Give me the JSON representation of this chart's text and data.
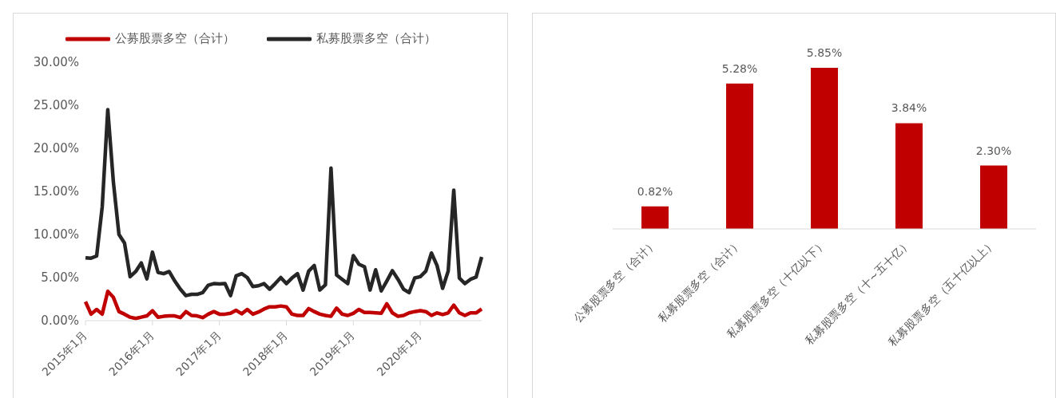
{
  "chart_data": [
    {
      "type": "line",
      "categories": [
        "2015年1月",
        null,
        null,
        null,
        null,
        null,
        null,
        null,
        null,
        null,
        null,
        null,
        "2016年1月",
        null,
        null,
        null,
        null,
        null,
        null,
        null,
        null,
        null,
        null,
        null,
        "2017年1月",
        null,
        null,
        null,
        null,
        null,
        null,
        null,
        null,
        null,
        null,
        null,
        "2018年1月",
        null,
        null,
        null,
        null,
        null,
        null,
        null,
        null,
        null,
        null,
        null,
        "2019年1月",
        null,
        null,
        null,
        null,
        null,
        null,
        null,
        null,
        null,
        null,
        null,
        "2020年1月",
        null,
        null,
        null,
        null,
        null,
        null,
        null,
        null,
        null,
        null,
        null
      ],
      "series": [
        {
          "name": "公募股票多空（合计）",
          "color": "#c00000",
          "values": [
            2.2,
            0.75,
            1.3,
            0.75,
            3.4,
            2.7,
            1.05,
            0.75,
            0.4,
            0.25,
            0.4,
            0.55,
            1.15,
            0.4,
            0.5,
            0.55,
            0.55,
            0.35,
            1.05,
            0.6,
            0.55,
            0.35,
            0.75,
            1.05,
            0.75,
            0.75,
            0.85,
            1.2,
            0.8,
            1.3,
            0.75,
            1.0,
            1.35,
            1.6,
            1.6,
            1.7,
            1.6,
            0.75,
            0.6,
            0.6,
            1.4,
            1.05,
            0.75,
            0.6,
            0.5,
            1.45,
            0.75,
            0.6,
            0.85,
            1.3,
            0.95,
            0.95,
            0.9,
            0.85,
            1.95,
            0.9,
            0.5,
            0.6,
            0.9,
            1.05,
            1.15,
            1.05,
            0.6,
            0.9,
            0.7,
            0.9,
            1.8,
            0.9,
            0.6,
            0.9,
            0.9,
            1.35
          ]
        },
        {
          "name": "私募股票多空（合计）",
          "color": "#262626",
          "values": [
            7.3,
            7.25,
            7.5,
            13.2,
            24.5,
            16.1,
            10.0,
            9.0,
            5.1,
            5.7,
            6.7,
            4.85,
            7.95,
            5.6,
            5.45,
            5.7,
            4.6,
            3.65,
            2.9,
            3.05,
            3.05,
            3.25,
            4.1,
            4.3,
            4.25,
            4.3,
            2.9,
            5.2,
            5.45,
            5.0,
            3.95,
            4.05,
            4.3,
            3.65,
            4.3,
            5.0,
            4.3,
            4.95,
            5.45,
            3.55,
            5.75,
            6.4,
            3.55,
            4.15,
            17.7,
            5.3,
            4.8,
            4.3,
            7.55,
            6.55,
            6.25,
            3.55,
            5.9,
            3.45,
            4.6,
            5.8,
            4.8,
            3.65,
            3.25,
            4.95,
            5.1,
            5.75,
            7.85,
            6.4,
            3.75,
            5.75,
            15.15,
            4.95,
            4.3,
            4.8,
            5.05,
            7.4
          ]
        }
      ],
      "ylim": [
        0,
        30
      ],
      "yticks": [
        {
          "value": 0,
          "label": "0.00%"
        },
        {
          "value": 5,
          "label": "5.00%"
        },
        {
          "value": 10,
          "label": "10.00%"
        },
        {
          "value": 15,
          "label": "15.00%"
        },
        {
          "value": 20,
          "label": "20.00%"
        },
        {
          "value": 25,
          "label": "25.00%"
        },
        {
          "value": 30,
          "label": "30.00%"
        }
      ],
      "grid": false,
      "legend": "top",
      "marker": "none",
      "line_style": "solid"
    },
    {
      "type": "bar",
      "categories": [
        "公募股票多空（合计）",
        "私募股票多空（合计）",
        "私募股票多空（十亿以下）",
        "私募股票多空（十~五十亿）",
        "私募股票多空（五十亿以上）"
      ],
      "values": [
        0.82,
        5.28,
        5.85,
        3.84,
        2.3
      ],
      "value_labels": [
        "0.82%",
        "5.28%",
        "5.85%",
        "3.84%",
        "2.30%"
      ],
      "color": "#c00000"
    }
  ]
}
